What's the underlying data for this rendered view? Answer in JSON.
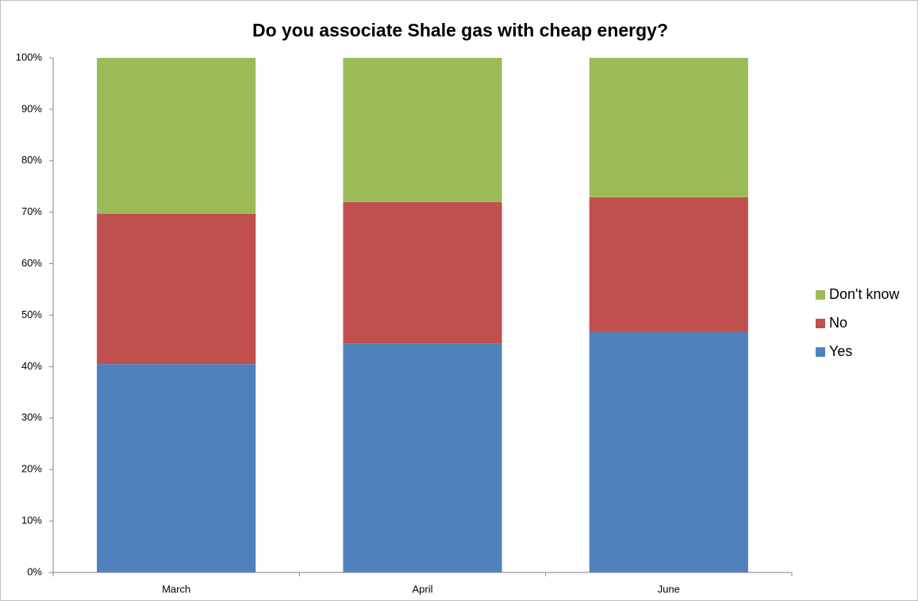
{
  "chart_data": {
    "type": "stacked-bar",
    "title": "Do you associate Shale gas with cheap energy?",
    "categories": [
      "March",
      "April",
      "June"
    ],
    "series": [
      {
        "name": "Yes",
        "color": "#4f81bd",
        "values": [
          40.5,
          44.5,
          46.7
        ]
      },
      {
        "name": "No",
        "color": "#c0504d",
        "values": [
          29.2,
          27.5,
          26.2
        ]
      },
      {
        "name": "Don't know",
        "color": "#9bbb59",
        "values": [
          30.3,
          28.0,
          27.1
        ]
      }
    ],
    "ylim": [
      0,
      100
    ],
    "yticks": [
      {
        "value": 0,
        "label": "0%"
      },
      {
        "value": 10,
        "label": "10%"
      },
      {
        "value": 20,
        "label": "20%"
      },
      {
        "value": 30,
        "label": "30%"
      },
      {
        "value": 40,
        "label": "40%"
      },
      {
        "value": 50,
        "label": "50%"
      },
      {
        "value": 60,
        "label": "60%"
      },
      {
        "value": 70,
        "label": "70%"
      },
      {
        "value": 80,
        "label": "80%"
      },
      {
        "value": 90,
        "label": "90%"
      },
      {
        "value": 100,
        "label": "100%"
      }
    ],
    "grid": false,
    "legend": "right"
  }
}
